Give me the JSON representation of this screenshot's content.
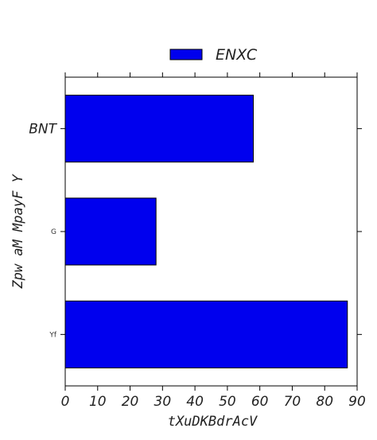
{
  "chart_data": {
    "type": "bar",
    "orientation": "horizontal",
    "categories": [
      "BNT",
      "G",
      "Yf"
    ],
    "series": [
      {
        "name": "ENXC",
        "values": [
          58,
          28,
          87
        ]
      }
    ],
    "xlabel": "tXuDKBdrAcV",
    "ylabel": "Zpw aM MpayF Y",
    "xlim": [
      0,
      90
    ],
    "xticks": [
      "0",
      "10",
      "20",
      "30",
      "40",
      "50",
      "60",
      "70",
      "80",
      "90"
    ],
    "grid": false,
    "legend_position": "top-center",
    "bar_color": "#0000ee"
  }
}
